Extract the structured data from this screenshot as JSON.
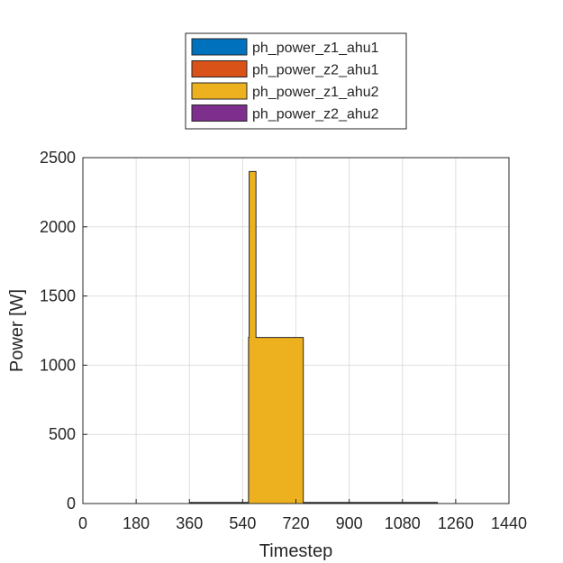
{
  "chart_data": {
    "type": "area",
    "xlabel": "Timestep",
    "ylabel": "Power [W]",
    "xlim": [
      0,
      1440
    ],
    "ylim": [
      0,
      2500
    ],
    "xticks": [
      0,
      180,
      360,
      540,
      720,
      900,
      1080,
      1260,
      1440
    ],
    "yticks": [
      0,
      500,
      1000,
      1500,
      2000,
      2500
    ],
    "grid": true,
    "stacked": true,
    "legend_position": "top-outside",
    "series": [
      {
        "name": "ph_power_z1_ahu1",
        "color": "#0072BD",
        "points": [
          [
            0,
            0
          ],
          [
            1440,
            0
          ]
        ]
      },
      {
        "name": "ph_power_z2_ahu1",
        "color": "#D95319",
        "points": [
          [
            0,
            0
          ],
          [
            560,
            0
          ],
          [
            560,
            1200
          ],
          [
            585,
            1200
          ],
          [
            585,
            0
          ],
          [
            1440,
            0
          ]
        ]
      },
      {
        "name": "ph_power_z1_ahu2",
        "color": "#EDB120",
        "points": [
          [
            0,
            0
          ],
          [
            560,
            0
          ],
          [
            560,
            1200
          ],
          [
            562,
            1200
          ],
          [
            562,
            2400
          ],
          [
            585,
            2400
          ],
          [
            585,
            1200
          ],
          [
            745,
            1200
          ],
          [
            745,
            0
          ],
          [
            1440,
            0
          ]
        ]
      },
      {
        "name": "ph_power_z2_ahu2",
        "color": "#7E2F8E",
        "points": [
          [
            0,
            0
          ],
          [
            1440,
            0
          ]
        ]
      }
    ],
    "baseline_segments": [
      [
        360,
        560
      ],
      [
        745,
        1200
      ]
    ]
  }
}
